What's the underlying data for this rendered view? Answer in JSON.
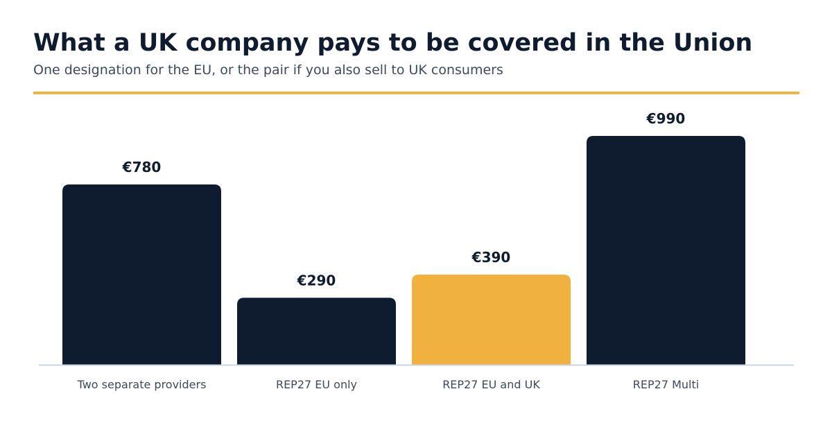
{
  "title": "What a UK company pays to be covered in the Union",
  "subtitle": "One designation for the EU, or the pair if you also sell to UK consumers",
  "colors": {
    "default_bar": "#0f1c2f",
    "highlight_bar": "#f0b13f",
    "accent_rule": "#e8b84a",
    "baseline": "#cbd5e1",
    "value_label": "#0f1c2f",
    "category_label": "#3d4a5c"
  },
  "chart_data": {
    "type": "bar",
    "title": "What a UK company pays to be covered in the Union",
    "subtitle": "One designation for the EU, or the pair if you also sell to UK consumers",
    "xlabel": "",
    "ylabel": "",
    "categories": [
      "Two separate providers",
      "REP27 EU only",
      "REP27 EU and UK",
      "REP27 Multi"
    ],
    "values": [
      780,
      290,
      390,
      990
    ],
    "value_labels": [
      "€780",
      "€290",
      "€390",
      "€990"
    ],
    "highlighted": "REP27 EU and UK",
    "ylim": [
      0,
      990
    ],
    "grid": false,
    "legend": "none"
  }
}
